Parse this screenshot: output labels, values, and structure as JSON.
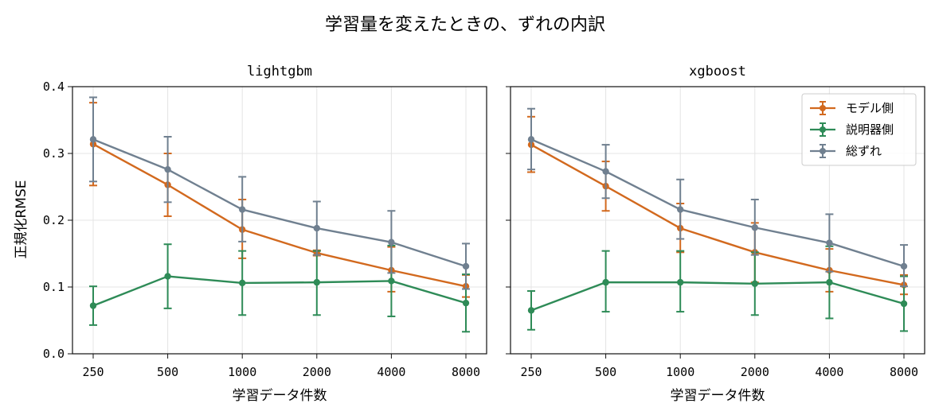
{
  "figure": {
    "suptitle": "学習量を変えたときの、ずれの内訳",
    "xlabel": "学習データ件数",
    "ylabel": "正規化RMSE"
  },
  "legend": {
    "placement": "upper-right",
    "entries": [
      "モデル側",
      "説明器側",
      "総ずれ"
    ]
  },
  "colors": {
    "model": "#d2691e",
    "explainer": "#2e8b57",
    "total": "#708090"
  },
  "chart_data": [
    {
      "type": "line",
      "title": "lightgbm",
      "xlabel": "学習データ件数",
      "ylabel": "正規化RMSE",
      "categories": [
        "250",
        "500",
        "1000",
        "2000",
        "4000",
        "8000"
      ],
      "ylim": [
        0.0,
        0.4
      ],
      "yticks": [
        "0.0",
        "0.1",
        "0.2",
        "0.3",
        "0.4"
      ],
      "grid": true,
      "series": [
        {
          "name": "モデル側",
          "color": "#d2691e",
          "values": [
            0.314,
            0.253,
            0.186,
            0.151,
            0.125,
            0.101
          ],
          "lower": [
            0.252,
            0.206,
            0.143,
            0.147,
            0.093,
            0.085
          ],
          "upper": [
            0.376,
            0.3,
            0.231,
            0.155,
            0.16,
            0.118
          ]
        },
        {
          "name": "説明器側",
          "color": "#2e8b57",
          "values": [
            0.072,
            0.116,
            0.106,
            0.107,
            0.109,
            0.076
          ],
          "lower": [
            0.043,
            0.068,
            0.058,
            0.058,
            0.056,
            0.033
          ],
          "upper": [
            0.101,
            0.164,
            0.154,
            0.154,
            0.162,
            0.119
          ]
        },
        {
          "name": "総ずれ",
          "color": "#708090",
          "values": [
            0.321,
            0.276,
            0.216,
            0.188,
            0.167,
            0.131
          ],
          "lower": [
            0.258,
            0.227,
            0.168,
            0.148,
            0.121,
            0.097
          ],
          "upper": [
            0.384,
            0.325,
            0.265,
            0.228,
            0.214,
            0.165
          ]
        }
      ]
    },
    {
      "type": "line",
      "title": "xgboost",
      "xlabel": "学習データ件数",
      "ylabel": "",
      "categories": [
        "250",
        "500",
        "1000",
        "2000",
        "4000",
        "8000"
      ],
      "ylim": [
        0.0,
        0.4
      ],
      "yticks": [],
      "grid": true,
      "legend": "upper-right",
      "series": [
        {
          "name": "モデル側",
          "color": "#d2691e",
          "values": [
            0.313,
            0.251,
            0.188,
            0.152,
            0.125,
            0.103
          ],
          "lower": [
            0.272,
            0.214,
            0.152,
            0.107,
            0.093,
            0.089
          ],
          "upper": [
            0.355,
            0.288,
            0.225,
            0.196,
            0.157,
            0.118
          ]
        },
        {
          "name": "説明器側",
          "color": "#2e8b57",
          "values": [
            0.065,
            0.107,
            0.107,
            0.105,
            0.107,
            0.075
          ],
          "lower": [
            0.036,
            0.063,
            0.063,
            0.058,
            0.053,
            0.034
          ],
          "upper": [
            0.094,
            0.154,
            0.154,
            0.152,
            0.161,
            0.116
          ]
        },
        {
          "name": "総ずれ",
          "color": "#708090",
          "values": [
            0.321,
            0.273,
            0.216,
            0.189,
            0.166,
            0.131
          ],
          "lower": [
            0.276,
            0.233,
            0.172,
            0.148,
            0.123,
            0.101
          ],
          "upper": [
            0.367,
            0.313,
            0.261,
            0.231,
            0.209,
            0.163
          ]
        }
      ]
    }
  ]
}
